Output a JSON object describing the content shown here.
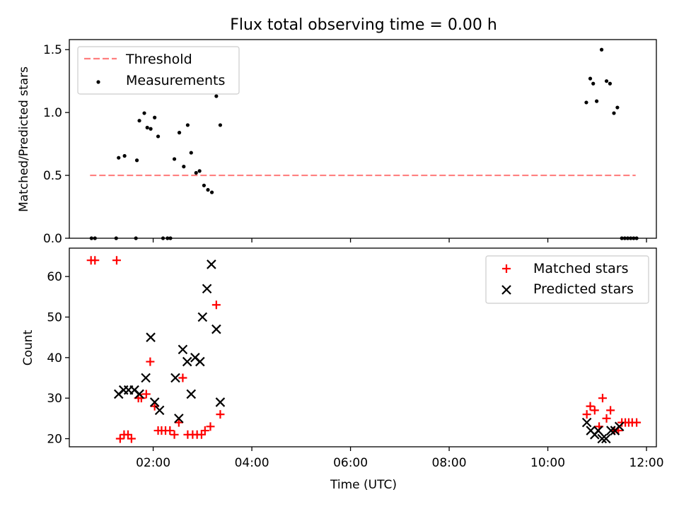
{
  "figure": {
    "title": "Flux total observing time = 0.00 h"
  },
  "chart_data": [
    {
      "type": "scatter",
      "ylabel": "Matched/Predicted stars",
      "xlim": [
        0.3,
        12.2
      ],
      "ylim": [
        0,
        1.58
      ],
      "yticks": [
        "0.0",
        "0.5",
        "1.0",
        "1.5"
      ],
      "ytick_values": [
        0,
        0.5,
        1.0,
        1.5
      ],
      "xtick_values": [
        2,
        4,
        6,
        8,
        10,
        12
      ],
      "legend": {
        "placement": "upper-left",
        "entries": [
          "Threshold",
          "Measurements"
        ]
      },
      "series": [
        {
          "name": "Threshold",
          "kind": "dashed-line",
          "color": "#ff7f7f",
          "x": [
            0.72,
            11.78
          ],
          "y": [
            0.5,
            0.5
          ]
        },
        {
          "name": "Measurements",
          "kind": "dot",
          "color": "#000000",
          "x": [
            0.75,
            0.82,
            1.25,
            1.3,
            1.42,
            1.65,
            1.67,
            1.72,
            1.82,
            1.88,
            1.95,
            2.03,
            2.1,
            2.2,
            2.29,
            2.35,
            2.43,
            2.53,
            2.62,
            2.7,
            2.77,
            2.87,
            2.94,
            3.03,
            3.11,
            3.19,
            3.28,
            3.36,
            10.78,
            10.86,
            10.92,
            10.99,
            11.09,
            11.19,
            11.26,
            11.34,
            11.41,
            11.5,
            11.56,
            11.62,
            11.68,
            11.74,
            11.8
          ],
          "y": [
            0,
            0,
            0,
            0.64,
            0.655,
            0,
            0.62,
            0.935,
            0.995,
            0.88,
            0.87,
            0.96,
            0.81,
            0,
            0,
            0,
            0.63,
            0.84,
            0.57,
            0.9,
            0.68,
            0.52,
            0.535,
            0.42,
            0.385,
            0.365,
            1.13,
            0.9,
            1.08,
            1.27,
            1.23,
            1.09,
            1.5,
            1.25,
            1.23,
            0.995,
            1.04,
            0,
            0,
            0,
            0,
            0,
            0
          ]
        }
      ]
    },
    {
      "type": "scatter",
      "xlabel": "Time (UTC)",
      "ylabel": "Count",
      "xlim": [
        0.3,
        12.2
      ],
      "ylim": [
        18,
        67
      ],
      "yticks": [
        "20",
        "30",
        "40",
        "50",
        "60"
      ],
      "ytick_values": [
        20,
        30,
        40,
        50,
        60
      ],
      "xticks": [
        "02:00",
        "04:00",
        "06:00",
        "08:00",
        "10:00",
        "12:00"
      ],
      "xtick_values": [
        2,
        4,
        6,
        8,
        10,
        12
      ],
      "legend": {
        "placement": "upper-right",
        "entries": [
          "Matched stars",
          "Predicted stars"
        ]
      },
      "series": [
        {
          "name": "Matched stars",
          "kind": "plus",
          "color": "#ff0000",
          "x": [
            0.74,
            0.82,
            1.26,
            1.33,
            1.41,
            1.49,
            1.56,
            1.7,
            1.76,
            1.86,
            1.94,
            2.03,
            2.1,
            2.17,
            2.25,
            2.34,
            2.43,
            2.52,
            2.6,
            2.7,
            2.8,
            2.89,
            2.98,
            3.05,
            3.16,
            3.28,
            3.36,
            10.79,
            10.86,
            10.95,
            11.04,
            11.11,
            11.19,
            11.27,
            11.35,
            11.43,
            11.5,
            11.57,
            11.64,
            11.71,
            11.8
          ],
          "y": [
            64,
            64,
            64,
            20,
            21,
            21,
            20,
            30,
            30,
            31,
            39,
            28,
            22,
            22,
            22,
            22,
            21,
            24,
            35,
            21,
            21,
            21,
            21,
            22,
            23,
            53,
            26,
            26,
            28,
            27,
            23,
            30,
            25,
            27,
            22,
            22,
            24,
            24,
            24,
            24,
            24
          ]
        },
        {
          "name": "Predicted stars",
          "kind": "cross",
          "color": "#000000",
          "x": [
            1.3,
            1.4,
            1.5,
            1.62,
            1.72,
            1.85,
            1.95,
            2.03,
            2.13,
            2.45,
            2.52,
            2.6,
            2.69,
            2.77,
            2.85,
            2.95,
            3.0,
            3.09,
            3.18,
            3.28,
            3.36,
            10.79,
            10.87,
            10.95,
            11.02,
            11.1,
            11.18,
            11.28,
            11.36,
            11.45
          ],
          "y": [
            31,
            32,
            32,
            32,
            31,
            35,
            45,
            29,
            27,
            35,
            25,
            42,
            39,
            31,
            40,
            39,
            50,
            57,
            63,
            47,
            29,
            24,
            22,
            21,
            22,
            20,
            20,
            22,
            22,
            23
          ]
        }
      ]
    }
  ]
}
